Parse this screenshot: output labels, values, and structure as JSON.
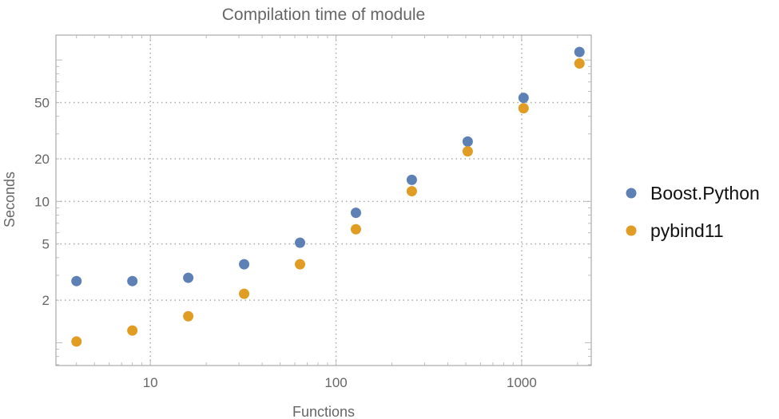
{
  "chart_data": {
    "type": "scatter",
    "title": "Compilation time of module",
    "xlabel": "Functions",
    "ylabel": "Seconds",
    "xscale": "log",
    "yscale": "log",
    "xlim": [
      3.1,
      2370
    ],
    "ylim": [
      0.69,
      150
    ],
    "grid": true,
    "legend_position": "right",
    "x_ticks": [
      10,
      100,
      1000
    ],
    "x_tick_labels": [
      "10",
      "100",
      "1000"
    ],
    "y_ticks": [
      2,
      5,
      10,
      20,
      50
    ],
    "y_tick_labels": [
      "2",
      "5",
      "10",
      "20",
      "50"
    ],
    "x": [
      4,
      8,
      16,
      32,
      64,
      128,
      256,
      512,
      1024,
      2048
    ],
    "series": [
      {
        "name": "Boost.Python",
        "color": "#5e81b5",
        "values": [
          2.73,
          2.73,
          2.88,
          3.59,
          5.1,
          8.3,
          14.2,
          26.5,
          54,
          114
        ]
      },
      {
        "name": "pybind11",
        "color": "#e19c24",
        "values": [
          1.02,
          1.22,
          1.54,
          2.22,
          3.59,
          6.35,
          11.8,
          22.6,
          45.6,
          94.5
        ]
      }
    ]
  }
}
